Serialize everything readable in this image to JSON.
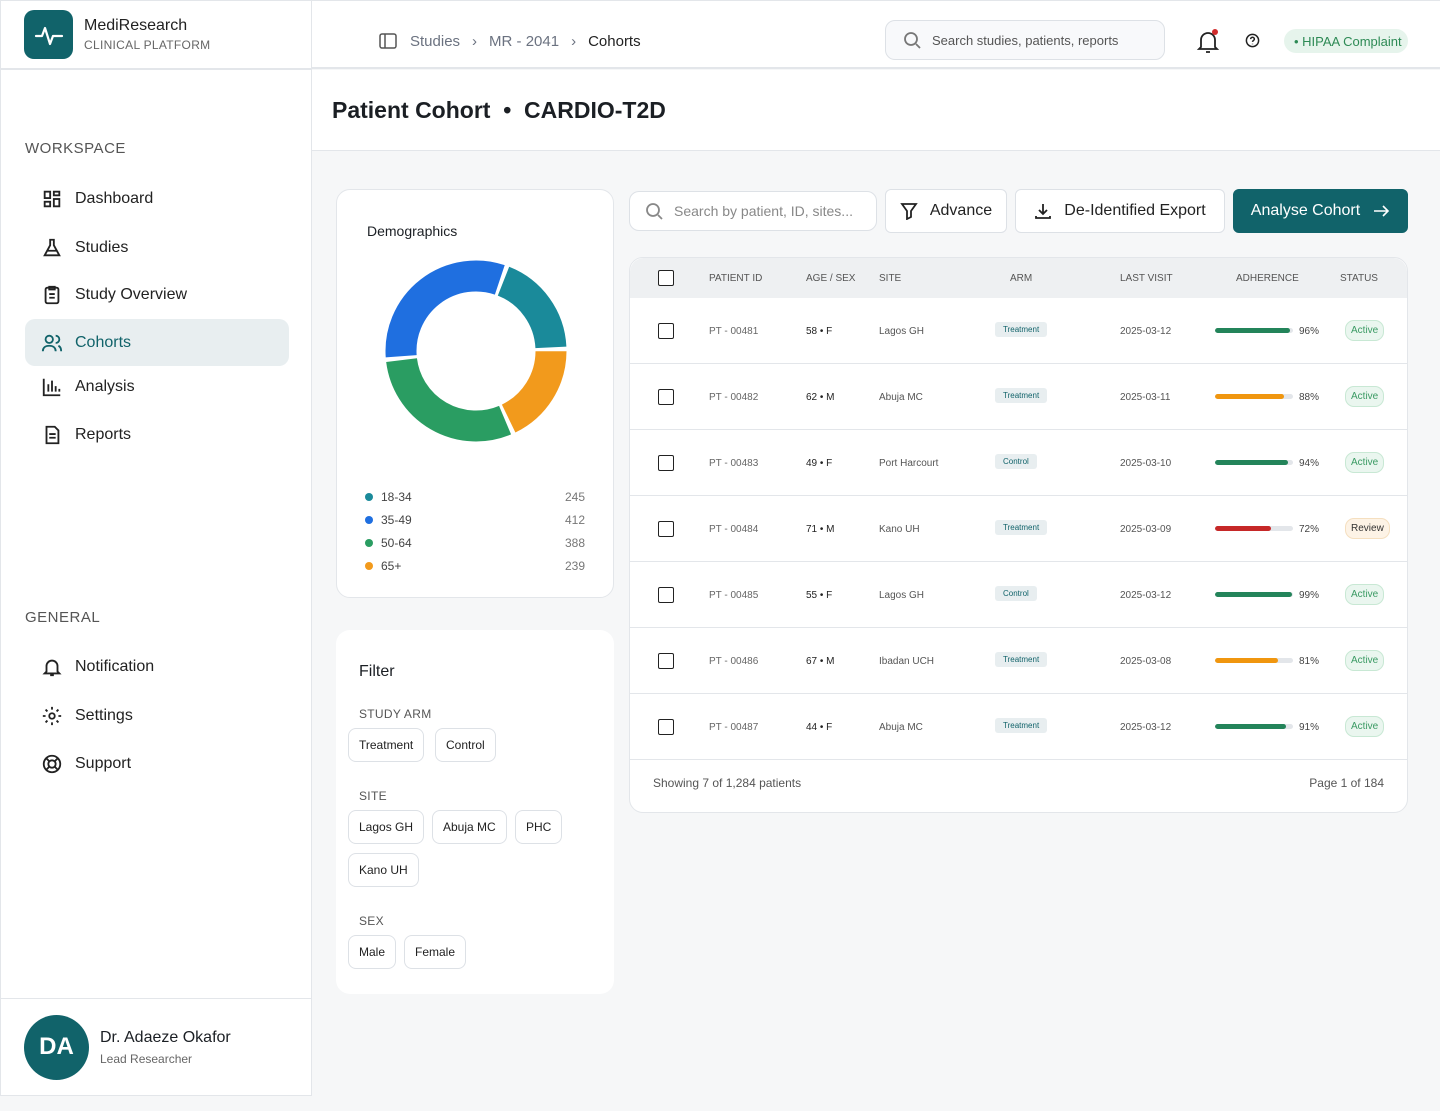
{
  "brand": {
    "name": "MediResearch",
    "subtitle": "CLINICAL PLATFORM"
  },
  "sidebar": {
    "workspace_label": "WORKSPACE",
    "general_label": "GENERAL",
    "items": [
      {
        "label": "Dashboard"
      },
      {
        "label": "Studies"
      },
      {
        "label": "Study Overview"
      },
      {
        "label": "Cohorts"
      },
      {
        "label": "Analysis"
      },
      {
        "label": "Reports"
      }
    ],
    "general": [
      {
        "label": "Notification"
      },
      {
        "label": "Settings"
      },
      {
        "label": "Support"
      }
    ]
  },
  "user": {
    "initials": "DA",
    "name": "Dr. Adaeze Okafor",
    "role": "Lead Researcher"
  },
  "breadcrumb": [
    "Studies",
    "MR - 2041",
    "Cohorts"
  ],
  "global_search": {
    "placeholder": "Search studies, patients, reports"
  },
  "hipaa": "• HIPAA Complaint",
  "page_title": "Patient Cohort  •  CARDIO-T2D",
  "demographics": {
    "title": "Demographics",
    "groups": [
      {
        "label": "18-34",
        "value": 245,
        "color": "#1a8a9a"
      },
      {
        "label": "35-49",
        "value": 412,
        "color": "#1f6fe0"
      },
      {
        "label": "50-64",
        "value": 388,
        "color": "#2a9d62"
      },
      {
        "label": "65+",
        "value": 239,
        "color": "#f29a1c"
      }
    ]
  },
  "filter": {
    "title": "Filter",
    "arm_label": "STUDY ARM",
    "arms": [
      "Treatment",
      "Control"
    ],
    "site_label": "SITE",
    "sites": [
      "Lagos GH",
      "Abuja MC",
      "PHC",
      "Kano UH"
    ],
    "sex_label": "SEX",
    "sexes": [
      "Male",
      "Female"
    ]
  },
  "toolbar": {
    "search_placeholder": "Search by patient, ID, sites...",
    "advance": "Advance",
    "export": "De-Identified Export",
    "analyse": "Analyse Cohort"
  },
  "table": {
    "headers": [
      "PATIENT ID",
      "AGE / SEX",
      "SITE",
      "ARM",
      "LAST VISIT",
      "ADHERENCE",
      "STATUS"
    ],
    "rows": [
      {
        "id": "PT - 00481",
        "age": "58 • F",
        "site": "Lagos GH",
        "arm": "Treatment",
        "visit": "2025-03-12",
        "adh": 96,
        "adh_label": "96%",
        "status": "Active"
      },
      {
        "id": "PT - 00482",
        "age": "62 • M",
        "site": "Abuja MC",
        "arm": "Treatment",
        "visit": "2025-03-11",
        "adh": 88,
        "adh_label": "88%",
        "status": "Active"
      },
      {
        "id": "PT - 00483",
        "age": "49 • F",
        "site": "Port Harcourt",
        "arm": "Control",
        "visit": "2025-03-10",
        "adh": 94,
        "adh_label": "94%",
        "status": "Active"
      },
      {
        "id": "PT - 00484",
        "age": "71 • M",
        "site": "Kano UH",
        "arm": "Treatment",
        "visit": "2025-03-09",
        "adh": 72,
        "adh_label": "72%",
        "status": "Review"
      },
      {
        "id": "PT - 00485",
        "age": "55 • F",
        "site": "Lagos GH",
        "arm": "Control",
        "visit": "2025-03-12",
        "adh": 99,
        "adh_label": "99%",
        "status": "Active"
      },
      {
        "id": "PT - 00486",
        "age": "67 • M",
        "site": "Ibadan UCH",
        "arm": "Treatment",
        "visit": "2025-03-08",
        "adh": 81,
        "adh_label": "81%",
        "status": "Active"
      },
      {
        "id": "PT - 00487",
        "age": "44 • F",
        "site": "Abuja MC",
        "arm": "Treatment",
        "visit": "2025-03-12",
        "adh": 91,
        "adh_label": "91%",
        "status": "Active"
      }
    ],
    "showing": "Showing  7 of 1,284 patients",
    "page": "Page 1 of 184"
  }
}
